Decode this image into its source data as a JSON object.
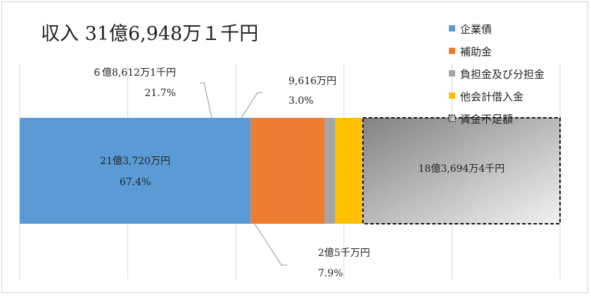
{
  "chart_data": {
    "type": "bar",
    "orientation": "horizontal",
    "stacked": true,
    "title": "収入 31億6,948万１千円",
    "xlim": [
      0,
      5
    ],
    "grid": true,
    "legend_position": "right",
    "series": [
      {
        "name": "企業債",
        "value": 2.1372,
        "color": "#5b9bd5",
        "label_lines": [
          "21億3,720万円",
          "67.4%"
        ]
      },
      {
        "name": "補助金",
        "value": 0.68612,
        "color": "#ed7d31",
        "label_lines": [
          "６億8,612万1千円",
          "21.7%"
        ]
      },
      {
        "name": "負担金及び分担金",
        "value": 0.09616,
        "color": "#a5a5a5",
        "label_lines": [
          "9,616万円",
          "3.0%"
        ]
      },
      {
        "name": "他会計借入金",
        "value": 0.25,
        "color": "#ffc000",
        "label_lines": [
          "2億5千万円",
          "7.9%"
        ]
      },
      {
        "name": "資金不足額",
        "value": 1.836944,
        "color": "gradient-gray",
        "dashed": true,
        "label_lines": [
          "18億3,694万4千円"
        ]
      }
    ]
  }
}
